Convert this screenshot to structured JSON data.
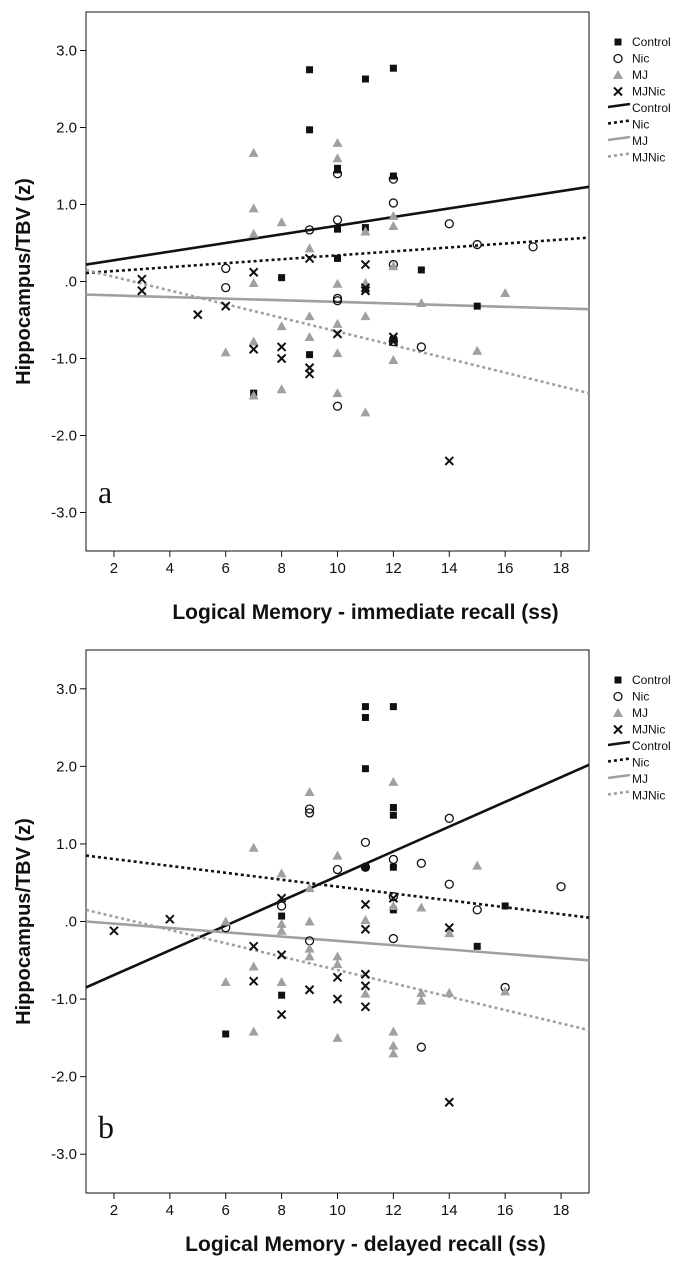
{
  "chart_data": [
    {
      "type": "scatter",
      "panel_label": "a",
      "xlabel": "Logical Memory - immediate recall (ss)",
      "ylabel": "Hippocampus/TBV (z)",
      "xlim": [
        1,
        19
      ],
      "ylim": [
        -3.5,
        3.5
      ],
      "x_ticks": [
        2,
        4,
        6,
        8,
        10,
        12,
        14,
        16,
        18
      ],
      "y_ticks": [
        3,
        2,
        1,
        0,
        -1,
        -2,
        -3
      ],
      "y_tick_labels": [
        "3.0",
        "2.0",
        "1.0",
        ".0",
        "-1.0",
        "-2.0",
        "-3.0"
      ],
      "grid": false,
      "legend_position": "right",
      "series": [
        {
          "name": "Control",
          "marker": "square",
          "color": "#111111",
          "points": [
            [
              7,
              -1.45
            ],
            [
              8,
              0.05
            ],
            [
              9,
              2.75
            ],
            [
              9,
              1.97
            ],
            [
              9,
              -0.95
            ],
            [
              10,
              1.47
            ],
            [
              10,
              1.45
            ],
            [
              10,
              0.68
            ],
            [
              10,
              0.3
            ],
            [
              11,
              2.63
            ],
            [
              11,
              0.7
            ],
            [
              11,
              -0.1
            ],
            [
              12,
              2.77
            ],
            [
              12,
              1.37
            ],
            [
              12,
              -0.75
            ],
            [
              13,
              0.15
            ],
            [
              15,
              -0.32
            ]
          ]
        },
        {
          "name": "Nic",
          "marker": "circle",
          "color": "#111111",
          "points": [
            [
              6,
              0.17
            ],
            [
              6,
              -0.08
            ],
            [
              9,
              0.67
            ],
            [
              10,
              1.4
            ],
            [
              10,
              0.8
            ],
            [
              10,
              -0.22
            ],
            [
              10,
              -0.25
            ],
            [
              10,
              -1.62
            ],
            [
              12,
              1.33
            ],
            [
              12,
              1.02
            ],
            [
              12,
              0.22
            ],
            [
              12,
              -0.78
            ],
            [
              13,
              -0.85
            ],
            [
              14,
              0.75
            ],
            [
              15,
              0.48
            ],
            [
              17,
              0.45
            ]
          ]
        },
        {
          "name": "MJ",
          "marker": "triangle",
          "color": "#a0a0a0",
          "points": [
            [
              6,
              -0.92
            ],
            [
              7,
              1.67
            ],
            [
              7,
              0.95
            ],
            [
              7,
              0.62
            ],
            [
              7,
              -0.02
            ],
            [
              7,
              -0.78
            ],
            [
              7,
              -1.48
            ],
            [
              8,
              0.77
            ],
            [
              8,
              -0.58
            ],
            [
              8,
              -1.4
            ],
            [
              9,
              0.43
            ],
            [
              9,
              -0.45
            ],
            [
              9,
              -0.72
            ],
            [
              10,
              1.8
            ],
            [
              10,
              1.6
            ],
            [
              10,
              -0.03
            ],
            [
              10,
              -0.55
            ],
            [
              10,
              -0.93
            ],
            [
              10,
              -1.45
            ],
            [
              11,
              0.65
            ],
            [
              11,
              -0.02
            ],
            [
              11,
              -0.45
            ],
            [
              11,
              -1.7
            ],
            [
              12,
              0.85
            ],
            [
              12,
              0.72
            ],
            [
              12,
              0.2
            ],
            [
              12,
              -1.02
            ],
            [
              13,
              -0.28
            ],
            [
              15,
              -0.9
            ],
            [
              16,
              -0.15
            ]
          ]
        },
        {
          "name": "MJNic",
          "marker": "x",
          "color": "#111111",
          "points": [
            [
              3,
              0.03
            ],
            [
              3,
              -0.12
            ],
            [
              5,
              -0.43
            ],
            [
              6,
              -0.32
            ],
            [
              7,
              0.12
            ],
            [
              7,
              -0.88
            ],
            [
              8,
              -0.85
            ],
            [
              8,
              -1.0
            ],
            [
              9,
              0.3
            ],
            [
              9,
              -1.12
            ],
            [
              9,
              -1.2
            ],
            [
              10,
              -0.68
            ],
            [
              11,
              0.22
            ],
            [
              11,
              -0.08
            ],
            [
              11,
              -0.12
            ],
            [
              12,
              -0.72
            ],
            [
              12,
              -0.78
            ],
            [
              14,
              -2.33
            ]
          ]
        }
      ],
      "fit_lines": [
        {
          "name": "Control",
          "style": "solid",
          "color": "#111111",
          "y_at_xmin": 0.22,
          "y_at_xmax": 1.23
        },
        {
          "name": "Nic",
          "style": "dotted",
          "color": "#111111",
          "y_at_xmin": 0.11,
          "y_at_xmax": 0.57
        },
        {
          "name": "MJ",
          "style": "solid",
          "color": "#a0a0a0",
          "y_at_xmin": -0.17,
          "y_at_xmax": -0.36
        },
        {
          "name": "MJNic",
          "style": "dotted",
          "color": "#a0a0a0",
          "y_at_xmin": 0.15,
          "y_at_xmax": -1.45
        }
      ]
    },
    {
      "type": "scatter",
      "panel_label": "b",
      "xlabel": "Logical Memory - delayed recall (ss)",
      "ylabel": "Hippocampus/TBV (z)",
      "xlim": [
        1,
        19
      ],
      "ylim": [
        -3.5,
        3.5
      ],
      "x_ticks": [
        2,
        4,
        6,
        8,
        10,
        12,
        14,
        16,
        18
      ],
      "y_ticks": [
        3,
        2,
        1,
        0,
        -1,
        -2,
        -3
      ],
      "y_tick_labels": [
        "3.0",
        "2.0",
        "1.0",
        ".0",
        "-1.0",
        "-2.0",
        "-3.0"
      ],
      "grid": false,
      "legend_position": "right",
      "series": [
        {
          "name": "Control",
          "marker": "square",
          "color": "#111111",
          "points": [
            [
              6,
              -1.45
            ],
            [
              8,
              0.07
            ],
            [
              8,
              -0.95
            ],
            [
              11,
              2.77
            ],
            [
              11,
              2.63
            ],
            [
              11,
              1.97
            ],
            [
              11,
              0.7
            ],
            [
              12,
              2.77
            ],
            [
              12,
              1.47
            ],
            [
              12,
              1.37
            ],
            [
              12,
              0.7
            ],
            [
              12,
              0.15
            ],
            [
              15,
              -0.32
            ],
            [
              16,
              0.2
            ]
          ]
        },
        {
          "name": "Nic",
          "marker": "circle",
          "color": "#111111",
          "points": [
            [
              6,
              -0.08
            ],
            [
              8,
              0.2
            ],
            [
              9,
              1.45
            ],
            [
              9,
              1.4
            ],
            [
              9,
              -0.25
            ],
            [
              10,
              0.67
            ],
            [
              11,
              1.02
            ],
            [
              11,
              0.7
            ],
            [
              12,
              0.8
            ],
            [
              12,
              0.32
            ],
            [
              12,
              -0.22
            ],
            [
              13,
              0.75
            ],
            [
              13,
              -1.62
            ],
            [
              14,
              1.33
            ],
            [
              14,
              0.48
            ],
            [
              15,
              0.15
            ],
            [
              16,
              -0.85
            ],
            [
              18,
              0.45
            ]
          ]
        },
        {
          "name": "MJ",
          "marker": "triangle",
          "color": "#a0a0a0",
          "points": [
            [
              6,
              -0.78
            ],
            [
              6,
              0.0
            ],
            [
              7,
              0.95
            ],
            [
              7,
              -0.58
            ],
            [
              7,
              -1.42
            ],
            [
              8,
              0.62
            ],
            [
              8,
              -0.03
            ],
            [
              8,
              -0.12
            ],
            [
              8,
              -0.78
            ],
            [
              9,
              1.67
            ],
            [
              9,
              0.43
            ],
            [
              9,
              0.0
            ],
            [
              9,
              -0.35
            ],
            [
              9,
              -0.45
            ],
            [
              10,
              0.85
            ],
            [
              10,
              -0.45
            ],
            [
              10,
              -0.55
            ],
            [
              10,
              -1.5
            ],
            [
              11,
              0.02
            ],
            [
              11,
              -0.93
            ],
            [
              12,
              1.8
            ],
            [
              12,
              0.2
            ],
            [
              12,
              -1.42
            ],
            [
              12,
              -1.6
            ],
            [
              12,
              -1.7
            ],
            [
              13,
              0.18
            ],
            [
              13,
              -0.92
            ],
            [
              13,
              -1.02
            ],
            [
              14,
              -0.92
            ],
            [
              14,
              -0.15
            ],
            [
              15,
              0.72
            ],
            [
              16,
              -0.9
            ]
          ]
        },
        {
          "name": "MJNic",
          "marker": "x",
          "color": "#111111",
          "points": [
            [
              2,
              -0.12
            ],
            [
              4,
              0.03
            ],
            [
              7,
              -0.32
            ],
            [
              7,
              -0.77
            ],
            [
              8,
              0.3
            ],
            [
              8,
              -0.43
            ],
            [
              8,
              -1.2
            ],
            [
              9,
              -0.88
            ],
            [
              10,
              -0.72
            ],
            [
              10,
              -1.0
            ],
            [
              11,
              0.22
            ],
            [
              11,
              -0.1
            ],
            [
              11,
              -0.68
            ],
            [
              11,
              -0.83
            ],
            [
              11,
              -1.1
            ],
            [
              12,
              0.3
            ],
            [
              14,
              -0.08
            ],
            [
              14,
              -2.33
            ]
          ]
        }
      ],
      "fit_lines": [
        {
          "name": "Control",
          "style": "solid",
          "color": "#111111",
          "y_at_xmin": -0.85,
          "y_at_xmax": 2.02
        },
        {
          "name": "Nic",
          "style": "dotted",
          "color": "#111111",
          "y_at_xmin": 0.85,
          "y_at_xmax": 0.05
        },
        {
          "name": "MJ",
          "style": "solid",
          "color": "#a0a0a0",
          "y_at_xmin": 0.0,
          "y_at_xmax": -0.5
        },
        {
          "name": "MJNic",
          "style": "dotted",
          "color": "#a0a0a0",
          "y_at_xmin": 0.15,
          "y_at_xmax": -1.4
        }
      ]
    }
  ]
}
